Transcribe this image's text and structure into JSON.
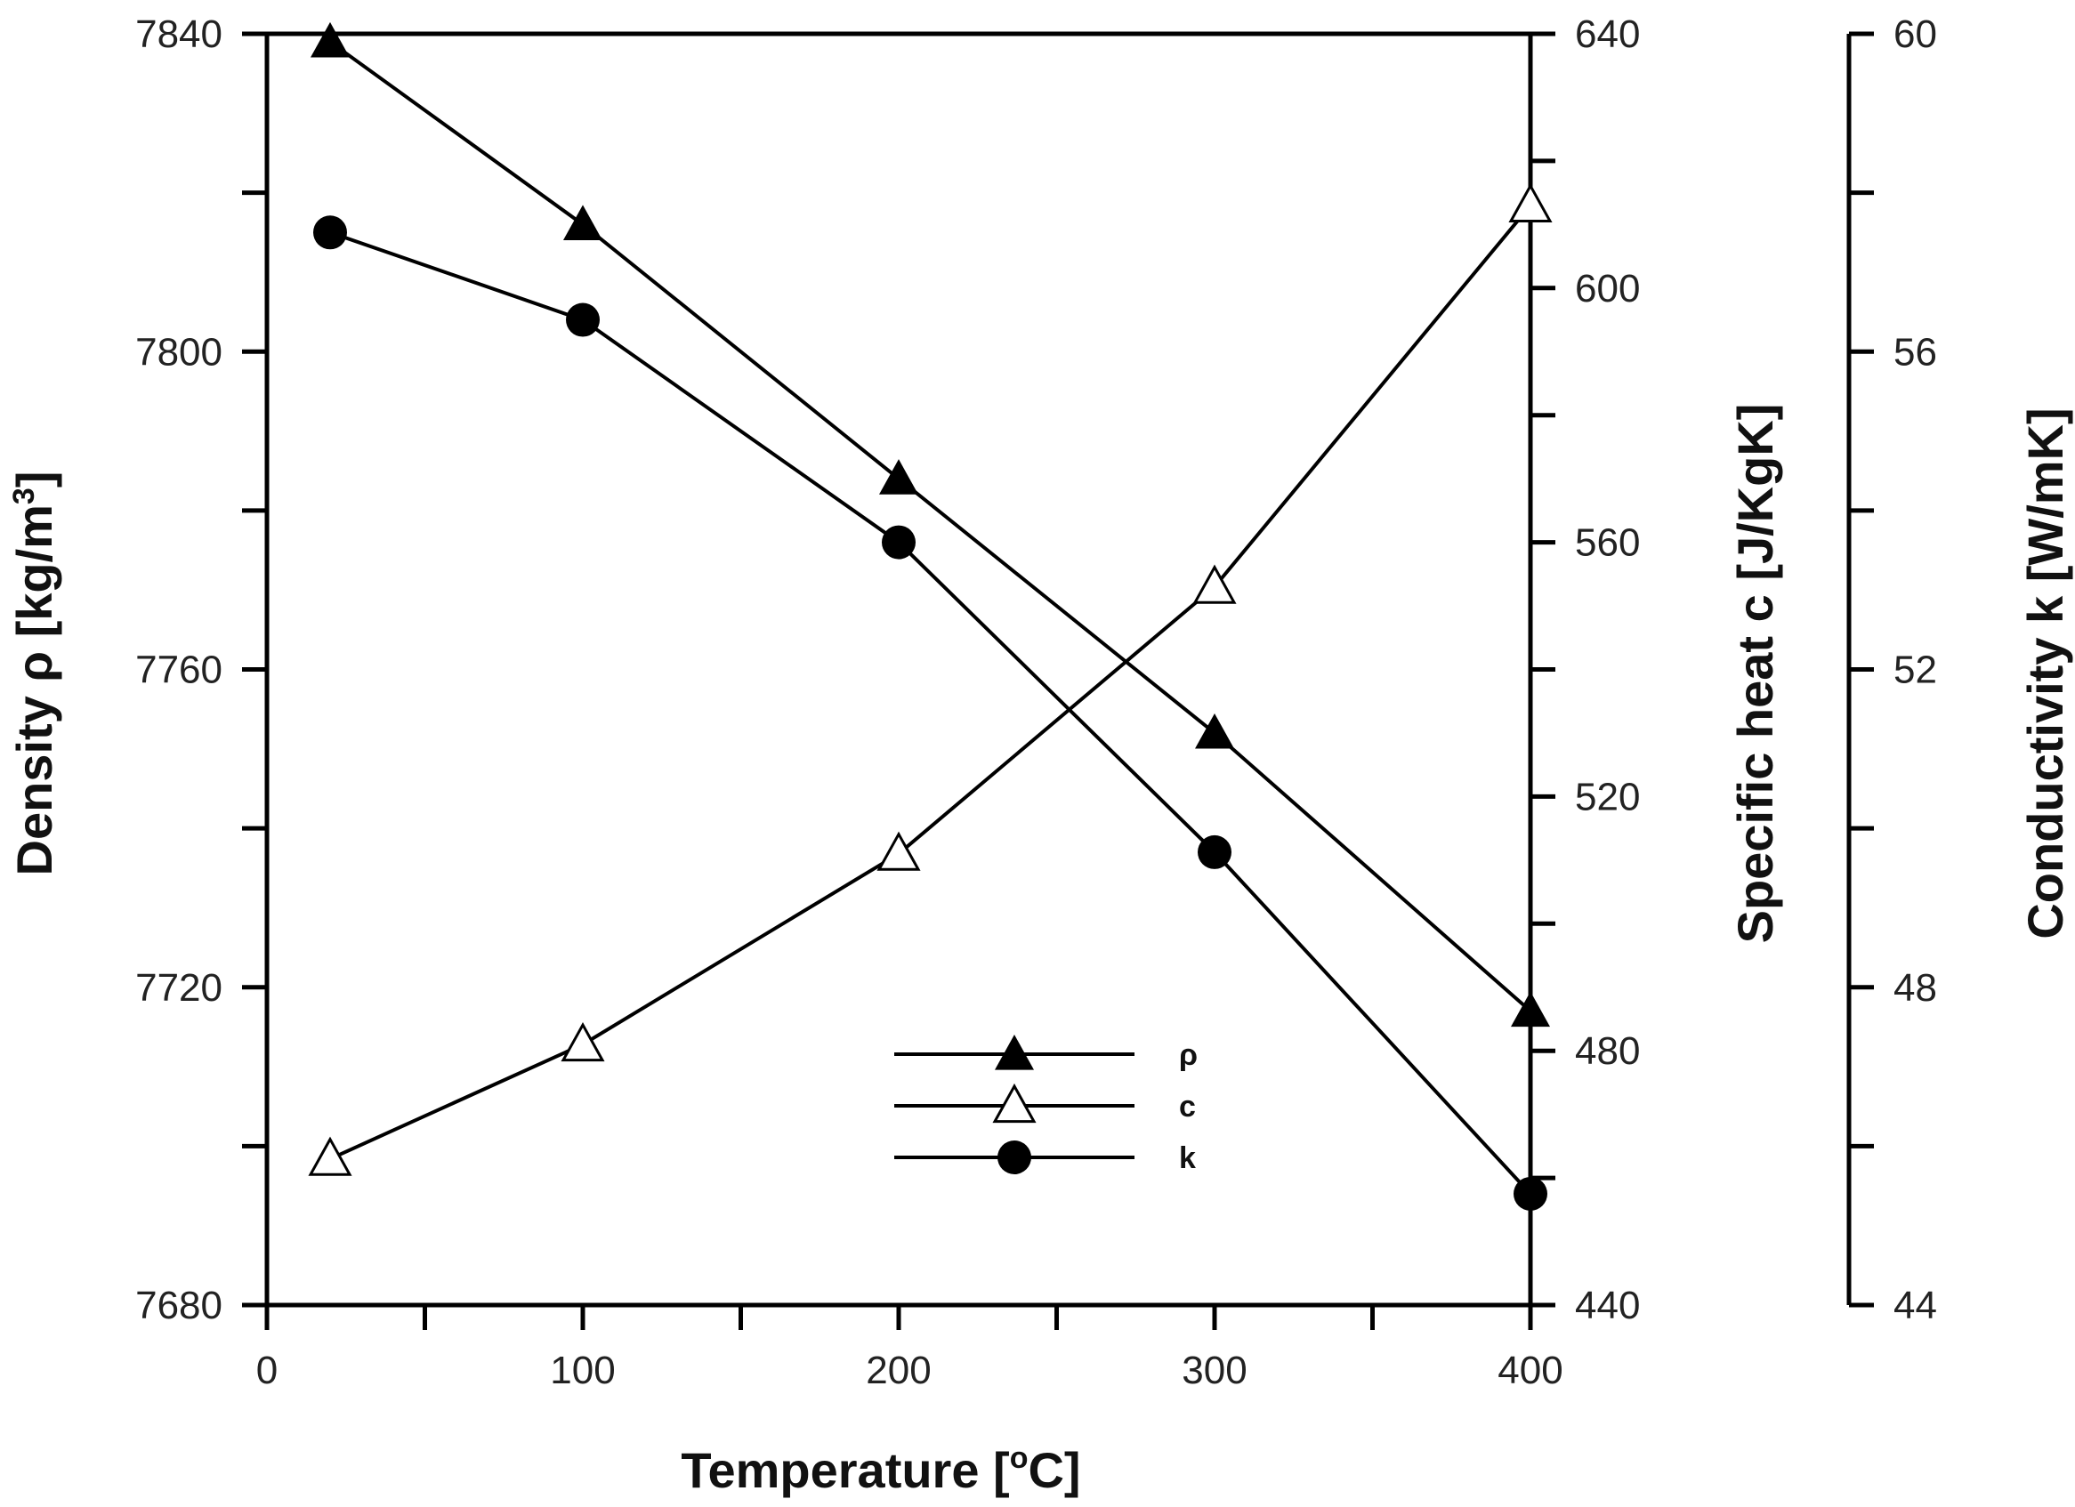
{
  "chart_data": {
    "type": "line",
    "x": [
      20,
      100,
      200,
      300,
      400
    ],
    "xlabel": "Temperature  [",
    "xlabel_sup": "o",
    "xlabel_unit": "C]",
    "xlim": [
      0,
      400
    ],
    "x_ticks": [
      0,
      100,
      200,
      300,
      400
    ],
    "x_tick_labels": [
      "0",
      "100",
      "200",
      "300",
      "400"
    ],
    "axes": {
      "density": {
        "label": "Density ρ [kg/m",
        "label_sup": "3",
        "label_end": "]",
        "lim": [
          7680,
          7840
        ],
        "ticks": [
          7680,
          7720,
          7760,
          7800,
          7840
        ],
        "tick_labels": [
          "7680",
          "7720",
          "7760",
          "7800",
          "7840"
        ]
      },
      "specific_heat": {
        "label": "Specific heat c [J/KgK]",
        "lim": [
          440,
          640
        ],
        "ticks": [
          440,
          480,
          520,
          560,
          600,
          640
        ],
        "tick_labels": [
          "440",
          "480",
          "520",
          "560",
          "600",
          "640"
        ]
      },
      "conductivity": {
        "label": "Conductivity k [W/mK]",
        "lim": [
          44,
          60
        ],
        "ticks": [
          44,
          48,
          52,
          56,
          60
        ],
        "tick_labels": [
          "44",
          "48",
          "52",
          "56",
          "60"
        ]
      }
    },
    "series": [
      {
        "name": "ρ",
        "axis": "density",
        "marker": "filled-triangle",
        "values": [
          7839,
          7816,
          7784,
          7752,
          7717
        ]
      },
      {
        "name": "c",
        "axis": "specific_heat",
        "marker": "open-triangle",
        "values": [
          463,
          481,
          511,
          553,
          613
        ]
      },
      {
        "name": "k",
        "axis": "conductivity",
        "marker": "filled-circle",
        "values": [
          57.5,
          56.4,
          53.6,
          49.7,
          45.4
        ]
      }
    ],
    "legend": {
      "position": "bottom-center",
      "entries": [
        "ρ",
        "c",
        "k"
      ]
    },
    "colors": {
      "line": "#000000",
      "text": "#222222"
    }
  }
}
